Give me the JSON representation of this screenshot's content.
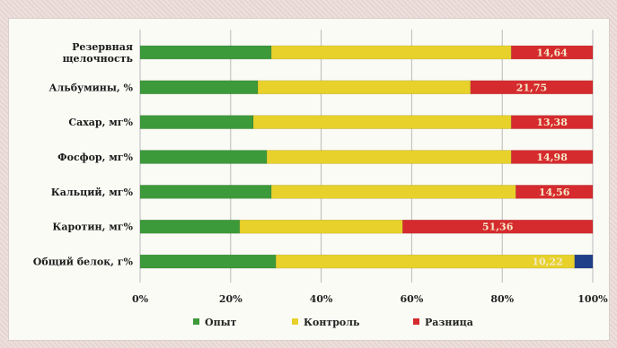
{
  "colors": {
    "series": [
      "#3c9a3a",
      "#e7d12a",
      "#d62b2e",
      "#21408a"
    ],
    "grid": "#b9b9b9",
    "value_label": "#f3e9c8"
  },
  "chart_data": {
    "type": "bar",
    "orientation": "horizontal",
    "stacked": "percent",
    "categories": [
      [
        "Резервная",
        "щелочность"
      ],
      [
        "Альбумины, %"
      ],
      [
        "Сахар, мг%"
      ],
      [
        "Фосфор, мг%"
      ],
      [
        "Кальций, мг%"
      ],
      [
        "Каротин, мг%"
      ],
      [
        "Общий белок, г%"
      ]
    ],
    "series": [
      {
        "name": "Опыт",
        "values": [
          29,
          26,
          25,
          28,
          29,
          22,
          30
        ]
      },
      {
        "name": "Контроль",
        "values": [
          53,
          47,
          57,
          54,
          54,
          36,
          66
        ]
      },
      {
        "name": "Разница",
        "values": [
          18,
          27,
          18,
          18,
          17,
          42,
          0
        ]
      },
      {
        "name": "",
        "values": [
          0,
          0,
          0,
          0,
          0,
          0,
          4
        ]
      }
    ],
    "data_labels": [
      "14,64",
      "21,75",
      "13,38",
      "14,98",
      "14,56",
      "51,36",
      "10,22"
    ],
    "xlim": [
      0,
      100
    ],
    "xticks": [
      "0%",
      "20%",
      "40%",
      "60%",
      "80%",
      "100%"
    ],
    "grid": true,
    "legend_position": "bottom"
  }
}
